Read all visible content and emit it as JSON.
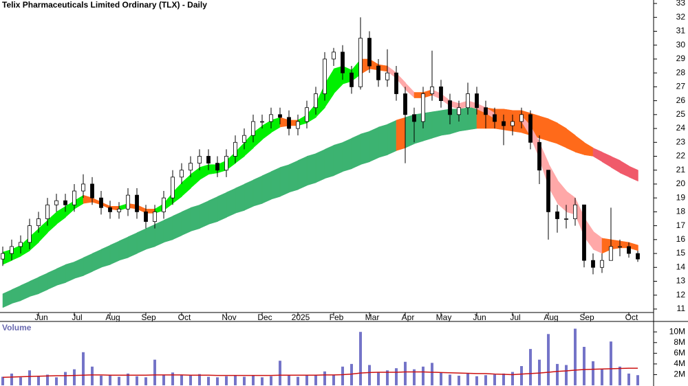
{
  "chart_data": [
    {
      "type": "candlestick",
      "title": "Telix Pharmaceuticals Limited Ordinary (TLX) - Daily",
      "categories": [
        null,
        null,
        null,
        null,
        "Jun",
        null,
        null,
        null,
        "Jul",
        null,
        null,
        null,
        "Aug",
        null,
        null,
        null,
        "Sep",
        null,
        null,
        null,
        "Oct",
        null,
        null,
        null,
        null,
        "Nov",
        null,
        null,
        null,
        "Dec",
        null,
        null,
        null,
        "2025",
        null,
        null,
        null,
        "Feb",
        null,
        null,
        null,
        "Mar",
        null,
        null,
        null,
        "Apr",
        null,
        null,
        null,
        "May",
        null,
        null,
        null,
        "Jun",
        null,
        null,
        null,
        "Jul",
        null,
        null,
        null,
        "Aug",
        null,
        null,
        null,
        "Sep",
        null,
        null,
        null,
        null,
        "Oct",
        null
      ],
      "open": [
        14.6,
        15.0,
        15.5,
        15.8,
        17.0,
        17.5,
        18.5,
        18.8,
        18.5,
        19.5,
        20.0,
        19.0,
        18.3,
        18.0,
        18.2,
        19.2,
        18.0,
        17.3,
        18.0,
        19.0,
        20.5,
        21.0,
        21.5,
        22.0,
        21.5,
        21.0,
        22.0,
        23.0,
        23.5,
        24.5,
        24.5,
        25.0,
        24.8,
        24.0,
        24.5,
        25.5,
        26.5,
        29.0,
        29.5,
        28.0,
        27.0,
        30.5,
        28.5,
        27.5,
        28.0,
        26.5,
        25.0,
        24.5,
        26.5,
        27.0,
        26.0,
        25.0,
        25.5,
        26.5,
        25.5,
        25.0,
        24.5,
        24.2,
        24.5,
        25.0,
        23.0,
        21.0,
        18.0,
        17.5,
        17.5,
        18.5,
        14.5,
        14.0,
        14.5,
        15.5,
        15.5,
        15.0
      ],
      "high": [
        15.5,
        16.0,
        16.3,
        17.5,
        18.0,
        19.0,
        19.3,
        19.3,
        20.0,
        20.7,
        20.5,
        19.5,
        18.8,
        18.7,
        19.7,
        19.7,
        18.5,
        18.5,
        19.5,
        21.0,
        21.5,
        22.0,
        22.5,
        22.5,
        22.0,
        22.5,
        23.5,
        24.0,
        25.0,
        25.0,
        25.5,
        25.5,
        25.3,
        25.0,
        26.0,
        27.0,
        29.5,
        29.8,
        30.0,
        28.5,
        32.0,
        31.0,
        29.0,
        29.7,
        28.5,
        27.0,
        25.5,
        27.0,
        29.6,
        27.5,
        26.5,
        26.0,
        27.3,
        27.0,
        26.0,
        25.5,
        25.0,
        25.0,
        25.5,
        25.3,
        23.5,
        21.0,
        18.5,
        18.5,
        19.0,
        18.5,
        15.0,
        15.0,
        18.3,
        16.0,
        15.8,
        15.2
      ],
      "low": [
        14.1,
        14.5,
        15.0,
        15.3,
        16.5,
        17.0,
        18.0,
        18.0,
        18.0,
        19.0,
        18.5,
        17.8,
        17.5,
        17.5,
        17.7,
        17.5,
        16.8,
        16.8,
        17.5,
        18.5,
        20.0,
        20.5,
        21.0,
        21.0,
        20.5,
        20.5,
        21.5,
        22.5,
        23.0,
        24.0,
        24.0,
        24.3,
        23.5,
        23.5,
        24.0,
        25.0,
        26.0,
        28.5,
        27.5,
        26.5,
        26.8,
        28.0,
        27.0,
        27.0,
        26.0,
        21.5,
        23.0,
        24.0,
        26.0,
        25.5,
        24.3,
        24.5,
        25.0,
        25.0,
        24.0,
        24.0,
        22.8,
        23.5,
        24.0,
        22.5,
        20.0,
        16.0,
        16.5,
        16.8,
        17.0,
        14.0,
        13.5,
        13.6,
        14.5,
        14.8,
        14.7,
        14.4
      ],
      "close": [
        15.0,
        15.5,
        15.8,
        17.0,
        17.5,
        18.5,
        18.8,
        18.5,
        19.5,
        20.0,
        19.0,
        18.3,
        18.0,
        18.2,
        19.2,
        18.0,
        17.3,
        18.0,
        19.0,
        20.5,
        21.0,
        21.5,
        22.0,
        21.5,
        21.0,
        22.0,
        23.0,
        23.5,
        24.5,
        24.5,
        25.0,
        24.8,
        24.0,
        24.5,
        25.5,
        26.5,
        29.0,
        29.5,
        28.0,
        27.0,
        30.5,
        28.5,
        27.5,
        28.0,
        26.5,
        25.0,
        24.5,
        26.5,
        27.0,
        26.0,
        25.0,
        25.5,
        26.5,
        25.5,
        25.0,
        24.5,
        24.2,
        24.5,
        25.0,
        23.0,
        21.0,
        18.0,
        17.5,
        17.5,
        18.5,
        14.5,
        14.0,
        14.5,
        15.5,
        15.5,
        15.0,
        14.6
      ],
      "color_up": "#ffffff",
      "color_down": "#000000",
      "ribbons": [
        {
          "upper": [
            12.1,
            12.4,
            12.7,
            13.0,
            13.3,
            13.6,
            13.9,
            14.2,
            14.4,
            14.7,
            15.0,
            15.3,
            15.6,
            15.9,
            16.2,
            16.5,
            16.8,
            17.1,
            17.4,
            17.7,
            18.0,
            18.3,
            18.5,
            18.8,
            19.1,
            19.4,
            19.7,
            20.0,
            20.3,
            20.6,
            20.9,
            21.2,
            21.4,
            21.7,
            22.0,
            22.2,
            22.5,
            22.8,
            23.0,
            23.3,
            23.6,
            23.8,
            24.1,
            24.3,
            24.6,
            24.8,
            25.0,
            25.1,
            25.2,
            25.3,
            25.4,
            25.4,
            25.5,
            25.5,
            25.5,
            25.4,
            25.4,
            25.3,
            25.3,
            25.1,
            24.9,
            24.7,
            24.4,
            24.0,
            23.5,
            23.0,
            22.6,
            22.3,
            22.0,
            21.7,
            21.3,
            21.0
          ],
          "lower": [
            11.1,
            11.4,
            11.6,
            11.9,
            12.1,
            12.4,
            12.7,
            12.9,
            13.2,
            13.4,
            13.7,
            14.0,
            14.2,
            14.5,
            14.7,
            15.0,
            15.3,
            15.5,
            15.8,
            16.0,
            16.3,
            16.6,
            16.8,
            17.1,
            17.3,
            17.6,
            17.9,
            18.1,
            18.4,
            18.6,
            18.9,
            19.1,
            19.4,
            19.6,
            19.9,
            20.1,
            20.4,
            20.6,
            20.9,
            21.1,
            21.4,
            21.6,
            21.9,
            22.1,
            22.4,
            22.6,
            22.9,
            23.1,
            23.3,
            23.5,
            23.6,
            23.8,
            23.9,
            24.0,
            24.0,
            24.0,
            23.9,
            23.8,
            23.7,
            23.5,
            23.3,
            23.1,
            22.9,
            22.6,
            22.3,
            22.1,
            22.0,
            21.6,
            21.2,
            20.8,
            20.5,
            20.2
          ],
          "colors": [
            "#3cb371",
            "#3cb371",
            "#3cb371",
            "#3cb371",
            "#3cb371",
            "#3cb371",
            "#3cb371",
            "#3cb371",
            "#3cb371",
            "#3cb371",
            "#3cb371",
            "#3cb371",
            "#3cb371",
            "#3cb371",
            "#3cb371",
            "#3cb371",
            "#3cb371",
            "#3cb371",
            "#3cb371",
            "#3cb371",
            "#3cb371",
            "#3cb371",
            "#3cb371",
            "#3cb371",
            "#3cb371",
            "#3cb371",
            "#3cb371",
            "#3cb371",
            "#3cb371",
            "#3cb371",
            "#3cb371",
            "#3cb371",
            "#3cb371",
            "#3cb371",
            "#3cb371",
            "#3cb371",
            "#3cb371",
            "#3cb371",
            "#3cb371",
            "#3cb371",
            "#3cb371",
            "#3cb371",
            "#3cb371",
            "#3cb371",
            "#ff6a1a",
            "#3cb371",
            "#3cb371",
            "#3cb371",
            "#3cb371",
            "#3cb371",
            "#3cb371",
            "#3cb371",
            "#3cb371",
            "#ff6a1a",
            "#ff6a1a",
            "#ff6a1a",
            "#ff6a1a",
            "#ff6a1a",
            "#ff6a1a",
            "#ff6a1a",
            "#ff6a1a",
            "#ff6a1a",
            "#ff6a1a",
            "#ff6a1a",
            "#ff6a1a",
            "#ff6a1a",
            "#f05a6a",
            "#f05a6a",
            "#f05a6a",
            "#f05a6a",
            "#f05a6a",
            "#f05a6a"
          ]
        },
        {
          "upper": [
            15.1,
            15.3,
            15.6,
            16.2,
            16.8,
            17.4,
            18.0,
            18.4,
            18.8,
            19.2,
            19.0,
            18.7,
            18.4,
            18.4,
            18.6,
            18.5,
            18.2,
            18.2,
            18.6,
            19.4,
            20.1,
            20.7,
            21.2,
            21.4,
            21.4,
            21.7,
            22.3,
            23.0,
            23.7,
            24.2,
            24.6,
            24.8,
            24.6,
            24.6,
            25.0,
            25.8,
            27.2,
            28.3,
            28.5,
            28.2,
            29.0,
            29.0,
            28.6,
            28.5,
            28.0,
            27.3,
            26.6,
            26.6,
            26.8,
            26.5,
            26.0,
            25.8,
            26.0,
            25.8,
            25.5,
            25.1,
            24.8,
            24.7,
            24.9,
            24.2,
            23.0,
            21.5,
            20.3,
            19.5,
            19.0,
            17.6,
            16.6,
            16.1,
            16.0,
            15.9,
            15.8,
            15.6
          ],
          "lower": [
            14.2,
            14.5,
            14.8,
            15.2,
            15.8,
            16.5,
            17.1,
            17.6,
            18.2,
            18.6,
            18.7,
            18.5,
            18.2,
            18.1,
            18.3,
            18.2,
            17.9,
            17.9,
            18.1,
            18.6,
            19.1,
            19.7,
            20.3,
            20.7,
            20.8,
            21.0,
            21.5,
            22.0,
            22.6,
            23.2,
            23.7,
            24.1,
            24.2,
            24.2,
            24.4,
            24.8,
            25.5,
            26.5,
            27.2,
            27.4,
            27.9,
            28.3,
            28.2,
            28.1,
            27.6,
            26.8,
            26.2,
            26.2,
            26.4,
            26.1,
            25.6,
            25.4,
            25.6,
            25.4,
            25.1,
            24.7,
            24.3,
            24.3,
            24.5,
            23.4,
            21.8,
            19.8,
            18.6,
            18.0,
            17.8,
            16.2,
            15.3,
            15.0,
            15.3,
            15.4,
            15.4,
            15.2
          ],
          "colors": [
            "#00f000",
            "#00f000",
            "#00f000",
            "#00f000",
            "#00f000",
            "#00f000",
            "#00f000",
            "#00f000",
            "#00f000",
            "#ff6a1a",
            "#ff6a1a",
            "#ff6a1a",
            "#ff6a1a",
            "#00f000",
            "#ff6a1a",
            "#ff6a1a",
            "#ff6a1a",
            "#00f000",
            "#00f000",
            "#00f000",
            "#00f000",
            "#00f000",
            "#00f000",
            "#00f000",
            "#00f000",
            "#00f000",
            "#00f000",
            "#00f000",
            "#00f000",
            "#00f000",
            "#00f000",
            "#ff6a1a",
            "#ff6a1a",
            "#00f000",
            "#00f000",
            "#00f000",
            "#00f000",
            "#00f000",
            "#00f000",
            "#00f000",
            "#ff6a1a",
            "#ff6a1a",
            "#ff6a1a",
            "#ffa8a8",
            "#ffa8a8",
            "#ffa8a8",
            "#ff6a1a",
            "#ff6a1a",
            "#ffa8a8",
            "#ffa8a8",
            "#ffa8a8",
            "#ffa8a8",
            "#ffa8a8",
            "#ffa8a8",
            "#ffa8a8",
            "#ff6a1a",
            "#ff6a1a",
            "#ff6a1a",
            "#ffa8a8",
            "#ffa8a8",
            "#ffa8a8",
            "#ffa8a8",
            "#ffa8a8",
            "#ffa8a8",
            "#ffa8a8",
            "#ffa8a8",
            "#ffa8a8",
            "#ff6a1a",
            "#ff6a1a",
            "#ff6a1a",
            "#ff6a1a",
            "#ff6a1a"
          ]
        }
      ],
      "ylim": [
        10.75,
        33.25
      ],
      "yticks": [
        11,
        12,
        13,
        14,
        15,
        16,
        17,
        18,
        19,
        20,
        21,
        22,
        23,
        24,
        25,
        26,
        27,
        28,
        29,
        30,
        31,
        32,
        33
      ]
    },
    {
      "type": "volume",
      "title": "Volume",
      "color": "#7474c8",
      "ma_color": "#cc1010",
      "values": [
        1600000,
        2200000,
        1500000,
        2800000,
        1800000,
        2000000,
        1500000,
        2500000,
        3000000,
        6200000,
        3500000,
        1800000,
        2000000,
        1600000,
        2200000,
        1700000,
        1500000,
        4800000,
        2000000,
        2400000,
        1900000,
        1800000,
        2100000,
        1600000,
        1500000,
        1700000,
        1800000,
        1600000,
        1900000,
        1500000,
        1700000,
        4600000,
        1800000,
        1600000,
        1900000,
        2000000,
        2600000,
        2000000,
        3500000,
        4000000,
        10000000,
        3800000,
        2500000,
        2800000,
        3200000,
        4400000,
        3000000,
        3500000,
        4200000,
        2400000,
        2000000,
        1800000,
        2200000,
        1700000,
        1900000,
        2000000,
        2200000,
        2500000,
        3600000,
        6800000,
        4800000,
        9600000,
        4000000,
        3800000,
        10600000,
        7200000,
        4500000,
        3000000,
        8200000,
        3500000,
        2200000,
        1900000
      ],
      "ma": [
        1500000,
        1550000,
        1600000,
        1650000,
        1700000,
        1750000,
        1800000,
        1800000,
        1850000,
        1900000,
        1950000,
        1950000,
        1900000,
        1900000,
        1900000,
        1900000,
        1900000,
        1950000,
        1950000,
        1950000,
        1950000,
        1900000,
        1900000,
        1900000,
        1850000,
        1850000,
        1850000,
        1850000,
        1850000,
        1850000,
        1850000,
        1900000,
        1900000,
        1900000,
        1900000,
        1900000,
        1950000,
        1950000,
        2000000,
        2100000,
        2300000,
        2400000,
        2450000,
        2450000,
        2450000,
        2500000,
        2500000,
        2500000,
        2450000,
        2400000,
        2350000,
        2300000,
        2250000,
        2200000,
        2200000,
        2100000,
        2050000,
        2000000,
        2100000,
        2200000,
        2300000,
        2450000,
        2600000,
        2700000,
        2850000,
        2950000,
        3000000,
        3050000,
        3100000,
        3150000,
        3200000,
        3200000
      ],
      "ylim": [
        0,
        11700000
      ],
      "yticks": [
        {
          "value": 2000000,
          "label": "2M"
        },
        {
          "value": 4000000,
          "label": "4M"
        },
        {
          "value": 6000000,
          "label": "6M"
        },
        {
          "value": 8000000,
          "label": "8M"
        },
        {
          "value": 10000000,
          "label": "10M"
        }
      ]
    }
  ]
}
